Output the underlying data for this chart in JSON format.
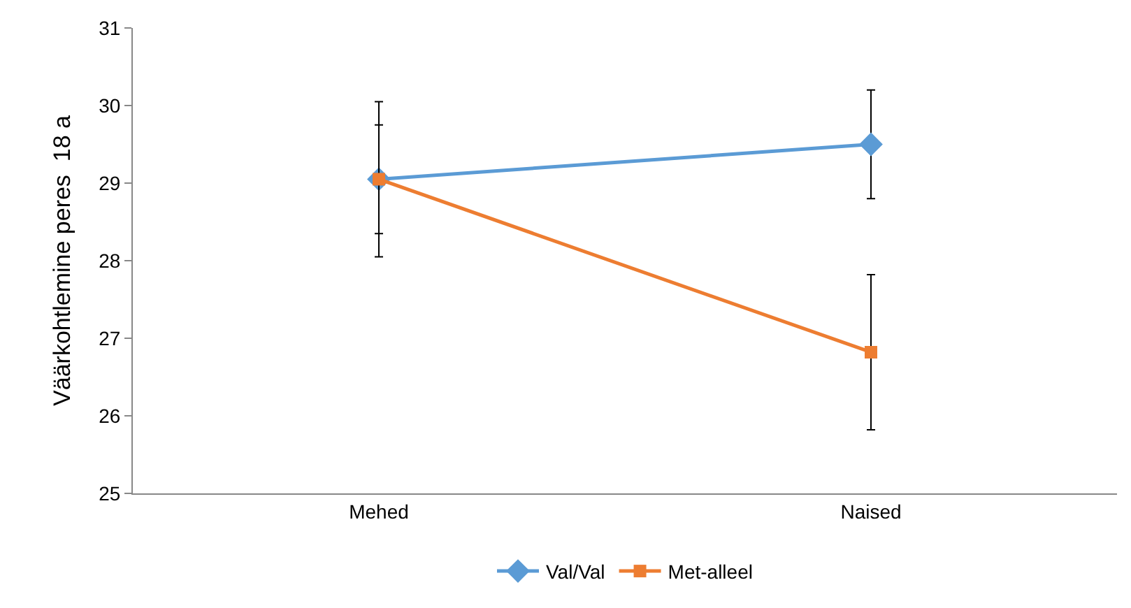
{
  "chart_data": {
    "type": "line",
    "ylabel": "Väärkohtlemine peres  18 a",
    "categories": [
      "Mehed",
      "Naised"
    ],
    "series": [
      {
        "name": "Val/Val",
        "color": "#5b9bd5",
        "marker": "diamond",
        "values": [
          29.05,
          29.5
        ],
        "errors": [
          0.7,
          0.7
        ]
      },
      {
        "name": "Met-alleel",
        "color": "#ed7d31",
        "marker": "square",
        "values": [
          29.05,
          26.82
        ],
        "errors": [
          1.0,
          1.0
        ]
      }
    ],
    "ylim": [
      25,
      31
    ],
    "yticks": [
      25,
      26,
      27,
      28,
      29,
      30,
      31
    ],
    "grid": false,
    "legend": "bottom"
  }
}
